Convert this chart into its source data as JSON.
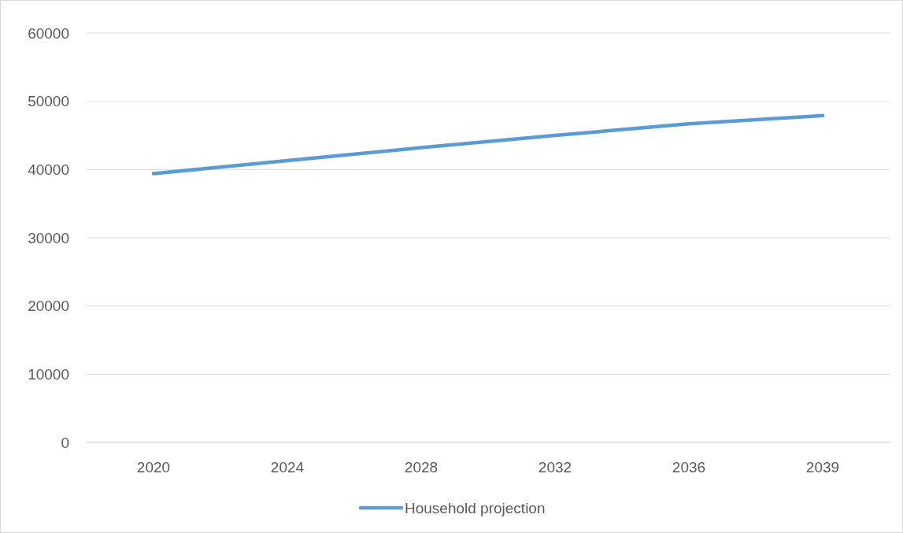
{
  "chart_data": {
    "type": "line",
    "categories": [
      "2020",
      "2024",
      "2028",
      "2032",
      "2036",
      "2039"
    ],
    "series": [
      {
        "name": "Household projection",
        "color": "#5b9bd5",
        "values": [
          39400,
          41300,
          43200,
          45000,
          46700,
          47900
        ]
      }
    ],
    "ylim": [
      0,
      60000
    ],
    "yticks": [
      0,
      10000,
      20000,
      30000,
      40000,
      50000,
      60000
    ],
    "grid": "y",
    "legend": "bottom",
    "marker": "none",
    "line_style": "solid"
  }
}
